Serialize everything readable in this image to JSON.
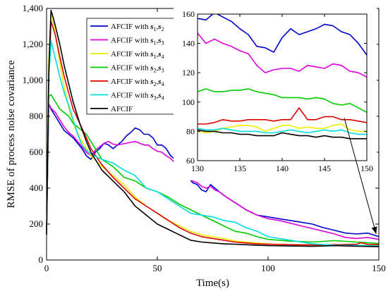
{
  "chart_data": {
    "type": "line",
    "xlabel": "Time(s)",
    "ylabel": "RMSE of process noise covariance",
    "xlim": [
      0,
      150
    ],
    "ylim": [
      0,
      1400
    ],
    "xticks": [
      0,
      50,
      100,
      150
    ],
    "yticks": [
      0,
      200,
      400,
      600,
      800,
      1000,
      1200,
      1400
    ],
    "ytick_labels": [
      "0",
      "200",
      "400",
      "600",
      "800",
      "1,000",
      "1,200",
      "1,400"
    ],
    "legend_position": "top-center",
    "series": [
      {
        "name": "AFCIF with s1,s2",
        "legend": {
          "pre": "AFCIF with ",
          "a": "s",
          "asub": "1",
          "b": "s",
          "bsub": "2"
        },
        "color": "#0000cc",
        "x": [
          0,
          1,
          2,
          4,
          6,
          8,
          10,
          12,
          14,
          16,
          18,
          20,
          22,
          24,
          26,
          28,
          30,
          32,
          34,
          36,
          38,
          40,
          42,
          44,
          46,
          48,
          50,
          52,
          54,
          56,
          58,
          60,
          62,
          64,
          66,
          68,
          70,
          72,
          74,
          76,
          78,
          80,
          85,
          90,
          95,
          100,
          105,
          110,
          115,
          120,
          125,
          130,
          135,
          140,
          145,
          150
        ],
        "y": [
          150,
          870,
          840,
          800,
          760,
          720,
          700,
          680,
          650,
          620,
          580,
          560,
          600,
          620,
          650,
          640,
          620,
          640,
          660,
          690,
          710,
          735,
          725,
          700,
          700,
          680,
          640,
          640,
          620,
          580,
          560,
          520,
          470,
          460,
          430,
          420,
          390,
          380,
          420,
          400,
          380,
          360,
          320,
          280,
          250,
          240,
          230,
          220,
          210,
          200,
          180,
          165,
          150,
          145,
          150,
          130
        ]
      },
      {
        "name": "AFCIF with s1,s3",
        "legend": {
          "pre": "AFCIF with ",
          "a": "s",
          "asub": "1",
          "b": "s",
          "bsub": "3"
        },
        "color": "#dd00dd",
        "x": [
          0,
          1,
          2,
          4,
          6,
          8,
          10,
          12,
          14,
          16,
          18,
          20,
          22,
          24,
          26,
          28,
          30,
          32,
          34,
          36,
          38,
          40,
          42,
          44,
          46,
          48,
          50,
          52,
          54,
          56,
          58,
          60,
          62,
          64,
          66,
          68,
          70,
          72,
          74,
          76,
          78,
          80,
          85,
          90,
          95,
          100,
          105,
          110,
          115,
          120,
          125,
          130,
          135,
          140,
          145,
          150
        ],
        "y": [
          150,
          870,
          845,
          820,
          780,
          740,
          710,
          690,
          660,
          630,
          600,
          580,
          610,
          630,
          650,
          660,
          645,
          640,
          645,
          650,
          655,
          660,
          650,
          640,
          640,
          620,
          605,
          600,
          580,
          565,
          540,
          520,
          480,
          470,
          440,
          430,
          410,
          400,
          410,
          390,
          380,
          360,
          320,
          280,
          250,
          230,
          220,
          205,
          190,
          175,
          160,
          145,
          125,
          120,
          125,
          115
        ]
      },
      {
        "name": "AFCIF with s1,s4",
        "legend": {
          "pre": "AFCIF with ",
          "a": "s",
          "asub": "1",
          "b": "s",
          "bsub": "4"
        },
        "color": "#eeee00",
        "x": [
          0,
          1,
          2,
          3,
          4,
          6,
          8,
          10,
          12,
          15,
          18,
          20,
          25,
          30,
          35,
          40,
          45,
          50,
          55,
          60,
          65,
          70,
          75,
          80,
          85,
          90,
          95,
          100,
          110,
          120,
          130,
          140,
          150
        ],
        "y": [
          150,
          1100,
          1380,
          1330,
          1250,
          1100,
          960,
          850,
          760,
          680,
          620,
          580,
          520,
          470,
          420,
          350,
          300,
          260,
          220,
          190,
          160,
          140,
          130,
          120,
          105,
          100,
          95,
          90,
          85,
          82,
          84,
          80,
          80
        ]
      },
      {
        "name": "AFCIF with s2,s3",
        "legend": {
          "pre": "AFCIF with ",
          "a": "s",
          "asub": "2",
          "b": "s",
          "bsub": "3"
        },
        "color": "#00cc00",
        "x": [
          0,
          1,
          2,
          4,
          6,
          8,
          10,
          12,
          14,
          16,
          18,
          20,
          25,
          30,
          35,
          40,
          45,
          50,
          55,
          60,
          65,
          70,
          75,
          80,
          85,
          90,
          95,
          100,
          110,
          120,
          130,
          140,
          150
        ],
        "y": [
          150,
          910,
          920,
          880,
          840,
          820,
          800,
          760,
          740,
          720,
          700,
          660,
          560,
          520,
          460,
          440,
          400,
          380,
          350,
          310,
          280,
          250,
          220,
          190,
          160,
          150,
          130,
          115,
          105,
          100,
          108,
          100,
          92
        ]
      },
      {
        "name": "AFCIF with s2,s4",
        "legend": {
          "pre": "AFCIF with ",
          "a": "s",
          "asub": "2",
          "b": "s",
          "bsub": "4"
        },
        "color": "#dd0000",
        "x": [
          0,
          1,
          2,
          4,
          6,
          8,
          10,
          12,
          15,
          18,
          20,
          25,
          30,
          35,
          40,
          45,
          50,
          55,
          60,
          65,
          70,
          75,
          80,
          85,
          90,
          95,
          100,
          110,
          120,
          130,
          140,
          142,
          145,
          150
        ],
        "y": [
          150,
          1000,
          1330,
          1250,
          1130,
          1020,
          930,
          840,
          760,
          680,
          620,
          530,
          460,
          400,
          340,
          300,
          260,
          220,
          180,
          150,
          130,
          120,
          110,
          100,
          95,
          90,
          88,
          85,
          84,
          85,
          88,
          96,
          87,
          86
        ]
      },
      {
        "name": "AFCIF with s3,s4",
        "legend": {
          "pre": "AFCIF with ",
          "a": "s",
          "asub": "3",
          "b": "s",
          "bsub": "4"
        },
        "color": "#00dddd",
        "x": [
          0,
          1,
          2,
          4,
          6,
          8,
          10,
          12,
          14,
          16,
          18,
          20,
          25,
          30,
          35,
          40,
          45,
          50,
          55,
          60,
          65,
          70,
          75,
          80,
          85,
          90,
          95,
          100,
          110,
          120,
          130,
          140,
          150
        ],
        "y": [
          150,
          1000,
          1220,
          1120,
          1020,
          930,
          860,
          780,
          700,
          640,
          610,
          590,
          560,
          540,
          500,
          470,
          400,
          380,
          340,
          300,
          260,
          250,
          240,
          220,
          210,
          180,
          160,
          130,
          110,
          90,
          82,
          81,
          78
        ]
      },
      {
        "name": "AFCIF",
        "legend": {
          "pre": "AFCIF",
          "a": "",
          "asub": "",
          "b": "",
          "bsub": ""
        },
        "color": "#000000",
        "x": [
          0,
          1,
          2,
          3,
          4,
          6,
          8,
          10,
          12,
          15,
          18,
          20,
          25,
          30,
          35,
          40,
          45,
          50,
          55,
          60,
          65,
          70,
          75,
          80,
          85,
          90,
          95,
          100,
          110,
          120,
          130,
          140,
          150
        ],
        "y": [
          140,
          1050,
          1390,
          1350,
          1300,
          1200,
          1080,
          980,
          880,
          760,
          660,
          600,
          500,
          440,
          380,
          300,
          250,
          200,
          170,
          140,
          110,
          100,
          95,
          90,
          88,
          85,
          82,
          80,
          78,
          76,
          80,
          77,
          74
        ]
      }
    ],
    "inset": {
      "xlim": [
        130,
        150
      ],
      "ylim": [
        60,
        160
      ],
      "xticks": [
        130,
        135,
        140,
        145,
        150
      ],
      "yticks": [
        60,
        80,
        100,
        120,
        140,
        160
      ],
      "series": [
        {
          "color": "#0000cc",
          "x": [
            130,
            131,
            132,
            133,
            134,
            135,
            136,
            137,
            138,
            139,
            140,
            141,
            142,
            143,
            144,
            145,
            146,
            147,
            148,
            149,
            150
          ],
          "y": [
            157,
            156,
            161,
            158,
            155,
            150,
            146,
            138,
            137,
            134,
            144,
            150,
            146,
            148,
            150,
            153,
            152,
            148,
            146,
            140,
            132
          ]
        },
        {
          "color": "#dd00dd",
          "x": [
            130,
            131,
            132,
            133,
            134,
            135,
            136,
            137,
            138,
            139,
            140,
            141,
            142,
            143,
            144,
            145,
            146,
            147,
            148,
            149,
            150
          ],
          "y": [
            147,
            140,
            143,
            140,
            138,
            135,
            133,
            125,
            120,
            122,
            123,
            123,
            121,
            125,
            124,
            123,
            126,
            125,
            121,
            120,
            117
          ]
        },
        {
          "color": "#eeee00",
          "x": [
            130,
            131,
            132,
            133,
            134,
            135,
            136,
            137,
            138,
            139,
            140,
            141,
            142,
            143,
            144,
            145,
            146,
            147,
            148,
            149,
            150
          ],
          "y": [
            80,
            79,
            80,
            82,
            83,
            84,
            84,
            83,
            80,
            82,
            84,
            84,
            82,
            83,
            82,
            82,
            84,
            85,
            81,
            80,
            80
          ]
        },
        {
          "color": "#00cc00",
          "x": [
            130,
            131,
            132,
            133,
            134,
            135,
            136,
            137,
            138,
            139,
            140,
            141,
            142,
            143,
            144,
            145,
            146,
            147,
            148,
            149,
            150
          ],
          "y": [
            107,
            109,
            107,
            107,
            108,
            108,
            109,
            107,
            106,
            105,
            103,
            103,
            103,
            102,
            103,
            102,
            99,
            98,
            99,
            96,
            93
          ]
        },
        {
          "color": "#dd0000",
          "x": [
            130,
            131,
            132,
            133,
            134,
            135,
            136,
            137,
            138,
            139,
            140,
            141,
            142,
            143,
            144,
            145,
            146,
            147,
            148,
            149,
            150
          ],
          "y": [
            85,
            85,
            86,
            88,
            87,
            87,
            88,
            88,
            88,
            87,
            88,
            88,
            96,
            88,
            88,
            90,
            90,
            88,
            88,
            87,
            86
          ]
        },
        {
          "color": "#00dddd",
          "x": [
            130,
            131,
            132,
            133,
            134,
            135,
            136,
            137,
            138,
            139,
            140,
            141,
            142,
            143,
            144,
            145,
            146,
            147,
            148,
            149,
            150
          ],
          "y": [
            82,
            81,
            81,
            82,
            81,
            80,
            80,
            80,
            79,
            79,
            80,
            81,
            80,
            79,
            80,
            81,
            80,
            81,
            79,
            78,
            78
          ]
        },
        {
          "color": "#000000",
          "x": [
            130,
            131,
            132,
            133,
            134,
            135,
            136,
            137,
            138,
            139,
            140,
            141,
            142,
            143,
            144,
            145,
            146,
            147,
            148,
            149,
            150
          ],
          "y": [
            81,
            80,
            80,
            79,
            79,
            78,
            78,
            77,
            77,
            77,
            79,
            78,
            77,
            77,
            76,
            77,
            76,
            76,
            75,
            75,
            75
          ]
        }
      ]
    },
    "annotation": {
      "type": "arrow",
      "from": [
        134.4,
        790
      ],
      "to": [
        148.8,
        145
      ]
    }
  }
}
